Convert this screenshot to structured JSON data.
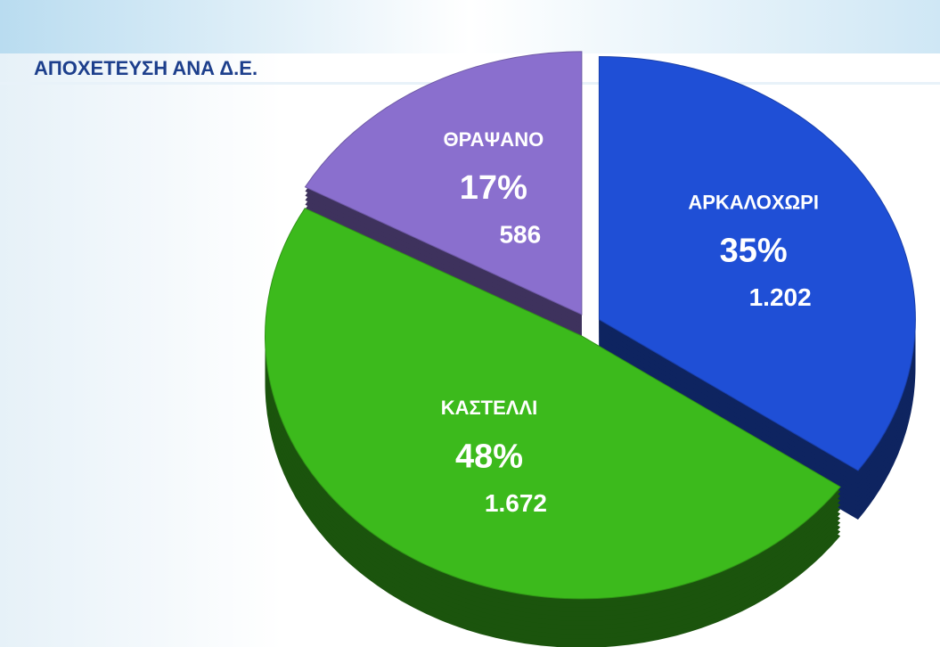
{
  "chart_data": {
    "type": "pie",
    "title": "ΑΠΟΧΕΤΕΥΣΗ ΑΝΑ Δ.Ε.",
    "categories": [
      "ΑΡΚΑΛΟΧΩΡΙ",
      "ΚΑΣΤΕΛΛΙ",
      "ΘΡΑΨΑΝΟ"
    ],
    "values": [
      1202,
      1672,
      586
    ],
    "value_labels": [
      "1.202",
      "1.672",
      "586"
    ],
    "percentages": [
      35,
      48,
      17
    ],
    "percentage_labels": [
      "35%",
      "48%",
      "17%"
    ],
    "colors": [
      "#1f4fd6",
      "#3cba1c",
      "#8a6fce"
    ]
  }
}
